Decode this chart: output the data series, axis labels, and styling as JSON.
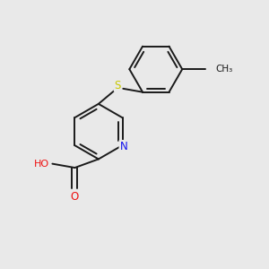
{
  "background_color": "#e9e9e9",
  "bond_color": "#1a1a1a",
  "bond_width": 1.4,
  "atom_colors": {
    "N": "#1010ee",
    "O": "#ee1010",
    "S": "#c8c800",
    "C": "#1a1a1a",
    "H": "#888888"
  },
  "figsize": [
    3.0,
    3.0
  ],
  "dpi": 100,
  "xlim": [
    -1.6,
    2.8
  ],
  "ylim": [
    -1.8,
    2.0
  ]
}
